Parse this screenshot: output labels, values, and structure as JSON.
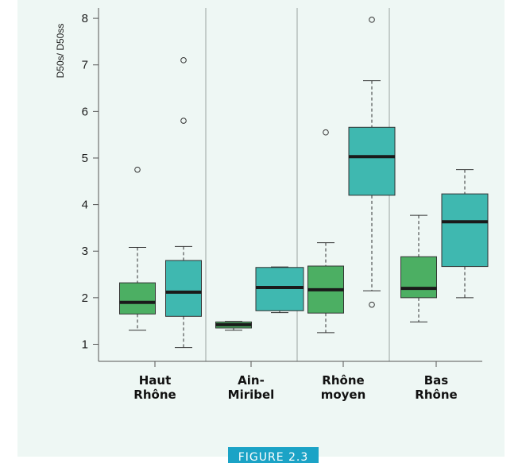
{
  "chart_data": {
    "type": "boxplot",
    "ylabel": "D50s/ D50ss",
    "ylim": [
      0.8,
      8.1
    ],
    "yticks": [
      1,
      2,
      3,
      4,
      5,
      6,
      7,
      8
    ],
    "groups": [
      {
        "label_lines": [
          "Haut",
          "Rhône"
        ]
      },
      {
        "label_lines": [
          "Ain-",
          "Miribel"
        ]
      },
      {
        "label_lines": [
          "Rhône",
          "moyen"
        ]
      },
      {
        "label_lines": [
          "Bas",
          "Rhône"
        ]
      }
    ],
    "series_colors": [
      "#4caf63",
      "#3fb8b0"
    ],
    "boxes": [
      {
        "group": 0,
        "series": 0,
        "min": 1.3,
        "q1": 1.65,
        "median": 1.9,
        "q3": 2.32,
        "max": 3.08,
        "outliers": [
          4.75
        ]
      },
      {
        "group": 0,
        "series": 1,
        "min": 0.93,
        "q1": 1.6,
        "median": 2.12,
        "q3": 2.8,
        "max": 3.1,
        "outliers": [
          5.8,
          7.1
        ]
      },
      {
        "group": 1,
        "series": 0,
        "min": 1.3,
        "q1": 1.35,
        "median": 1.42,
        "q3": 1.48,
        "max": 1.49,
        "outliers": []
      },
      {
        "group": 1,
        "series": 1,
        "min": 1.68,
        "q1": 1.72,
        "median": 2.22,
        "q3": 2.65,
        "max": 2.66,
        "outliers": []
      },
      {
        "group": 2,
        "series": 0,
        "min": 1.25,
        "q1": 1.67,
        "median": 2.17,
        "q3": 2.68,
        "max": 3.18,
        "outliers": [
          5.55
        ]
      },
      {
        "group": 2,
        "series": 1,
        "min": 2.15,
        "q1": 4.2,
        "median": 5.03,
        "q3": 5.66,
        "max": 6.66,
        "outliers": [
          1.85,
          7.97
        ]
      },
      {
        "group": 3,
        "series": 0,
        "min": 1.48,
        "q1": 2.0,
        "median": 2.2,
        "q3": 2.88,
        "max": 3.77,
        "outliers": []
      },
      {
        "group": 3,
        "series": 1,
        "min": 2.0,
        "q1": 2.67,
        "median": 3.63,
        "q3": 4.23,
        "max": 4.75,
        "outliers": []
      }
    ]
  },
  "figure_tag": "FIGURE 2.3"
}
